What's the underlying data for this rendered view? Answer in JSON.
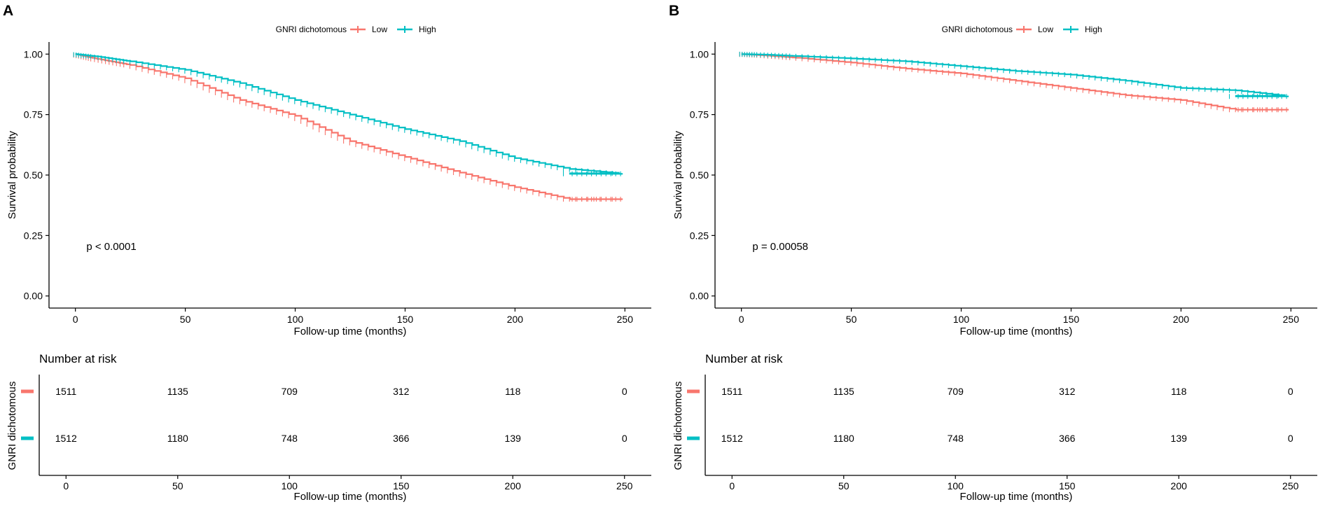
{
  "colors": {
    "low": "#F8766D",
    "high": "#00BFC4",
    "axis": "#000000",
    "text": "#000000"
  },
  "legend": {
    "title": "GNRI dichotomous",
    "low_label": "Low",
    "high_label": "High"
  },
  "chart_data": [
    {
      "panel_label": "A",
      "type": "line",
      "title": "",
      "xlabel": "Follow-up time (months)",
      "ylabel": "Survival probability",
      "xlim": [
        -12,
        262
      ],
      "ylim": [
        -0.05,
        1.05
      ],
      "xticks": [
        0,
        50,
        100,
        150,
        200,
        250
      ],
      "xtick_labels": [
        "0",
        "50",
        "100",
        "150",
        "200",
        "250"
      ],
      "yticks": [
        0,
        0.25,
        0.5,
        0.75,
        1
      ],
      "ytick_labels": [
        "0.00",
        "0.25",
        "0.50",
        "0.75",
        "1.00"
      ],
      "pvalue": "p < 0.0001",
      "pvalue_pos": [
        5,
        0.19
      ],
      "series": [
        {
          "name": "Low",
          "color": "#F8766D",
          "x": [
            0,
            10,
            25,
            50,
            75,
            100,
            125,
            150,
            175,
            200,
            225,
            250
          ],
          "y": [
            1.0,
            0.98,
            0.955,
            0.9,
            0.81,
            0.745,
            0.64,
            0.575,
            0.51,
            0.45,
            0.4,
            0.4
          ],
          "end_x": 249
        },
        {
          "name": "High",
          "color": "#00BFC4",
          "x": [
            0,
            10,
            25,
            50,
            75,
            100,
            125,
            150,
            175,
            200,
            225,
            250
          ],
          "y": [
            1.0,
            0.99,
            0.97,
            0.935,
            0.88,
            0.81,
            0.75,
            0.69,
            0.64,
            0.57,
            0.525,
            0.505
          ],
          "end_x": 249
        }
      ],
      "risk_table": {
        "title": "Number at risk",
        "strata_label": "GNRI dichotomous",
        "xlabel": "Follow-up time (months)",
        "times": [
          0,
          50,
          100,
          150,
          200,
          250
        ],
        "time_labels": [
          "0",
          "50",
          "100",
          "150",
          "200",
          "250"
        ],
        "rows": [
          {
            "name": "Low",
            "color": "#F8766D",
            "counts": [
              "1511",
              "1135",
              "709",
              "312",
              "118",
              "0"
            ]
          },
          {
            "name": "High",
            "color": "#00BFC4",
            "counts": [
              "1512",
              "1180",
              "748",
              "366",
              "139",
              "0"
            ]
          }
        ]
      }
    },
    {
      "panel_label": "B",
      "type": "line",
      "title": "",
      "xlabel": "Follow-up time (months)",
      "ylabel": "Survival probability",
      "xlim": [
        -12,
        262
      ],
      "ylim": [
        -0.05,
        1.05
      ],
      "xticks": [
        0,
        50,
        100,
        150,
        200,
        250
      ],
      "xtick_labels": [
        "0",
        "50",
        "100",
        "150",
        "200",
        "250"
      ],
      "yticks": [
        0,
        0.25,
        0.5,
        0.75,
        1
      ],
      "ytick_labels": [
        "0.00",
        "0.25",
        "0.50",
        "0.75",
        "1.00"
      ],
      "pvalue": "p = 0.00058",
      "pvalue_pos": [
        5,
        0.19
      ],
      "series": [
        {
          "name": "Low",
          "color": "#F8766D",
          "x": [
            0,
            10,
            25,
            50,
            75,
            100,
            125,
            150,
            175,
            200,
            225,
            250
          ],
          "y": [
            1.0,
            0.995,
            0.985,
            0.965,
            0.94,
            0.92,
            0.89,
            0.86,
            0.83,
            0.81,
            0.77,
            0.77
          ],
          "end_x": 249
        },
        {
          "name": "High",
          "color": "#00BFC4",
          "x": [
            0,
            10,
            25,
            50,
            75,
            100,
            125,
            150,
            175,
            200,
            225,
            250
          ],
          "y": [
            1.0,
            0.998,
            0.992,
            0.982,
            0.97,
            0.95,
            0.93,
            0.915,
            0.89,
            0.86,
            0.85,
            0.825
          ],
          "end_x": 249
        }
      ],
      "risk_table": {
        "title": "Number at risk",
        "strata_label": "GNRI dichotomous",
        "xlabel": "Follow-up time (months)",
        "times": [
          0,
          50,
          100,
          150,
          200,
          250
        ],
        "time_labels": [
          "0",
          "50",
          "100",
          "150",
          "200",
          "250"
        ],
        "rows": [
          {
            "name": "Low",
            "color": "#F8766D",
            "counts": [
              "1511",
              "1135",
              "709",
              "312",
              "118",
              "0"
            ]
          },
          {
            "name": "High",
            "color": "#00BFC4",
            "counts": [
              "1512",
              "1180",
              "748",
              "366",
              "139",
              "0"
            ]
          }
        ]
      }
    }
  ]
}
